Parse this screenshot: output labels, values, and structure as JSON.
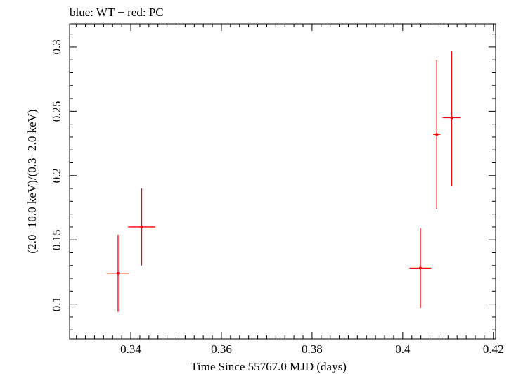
{
  "chart_data": {
    "type": "scatter",
    "title": "blue: WT − red: PC",
    "xlabel": "Time Since 55767.0 MJD (days)",
    "ylabel": "(2.0−10.0 keV)/(0.3−2.0 keV)",
    "xlim": [
      0.3265,
      0.4205
    ],
    "ylim": [
      0.073,
      0.318
    ],
    "x_ticks": [
      {
        "value": 0.34,
        "label": "0.34"
      },
      {
        "value": 0.36,
        "label": "0.36"
      },
      {
        "value": 0.38,
        "label": "0.38"
      },
      {
        "value": 0.4,
        "label": "0.4"
      },
      {
        "value": 0.42,
        "label": "0.42"
      }
    ],
    "y_ticks": [
      {
        "value": 0.1,
        "label": "0.1"
      },
      {
        "value": 0.15,
        "label": "0.15"
      },
      {
        "value": 0.2,
        "label": "0.2"
      },
      {
        "value": 0.25,
        "label": "0.25"
      },
      {
        "value": 0.3,
        "label": "0.3"
      }
    ],
    "grid": false,
    "series": [
      {
        "name": "PC",
        "color": "#ff0000",
        "points": [
          {
            "x": 0.3372,
            "y": 0.124,
            "xerr": 0.0025,
            "yerr_low": 0.03,
            "yerr_high": 0.03
          },
          {
            "x": 0.3424,
            "y": 0.16,
            "xerr": 0.003,
            "yerr_low": 0.03,
            "yerr_high": 0.03
          },
          {
            "x": 0.4039,
            "y": 0.128,
            "xerr": 0.0024,
            "yerr_low": 0.031,
            "yerr_high": 0.031
          },
          {
            "x": 0.4075,
            "y": 0.232,
            "xerr": 0.0008,
            "yerr_low": 0.058,
            "yerr_high": 0.058
          },
          {
            "x": 0.4108,
            "y": 0.245,
            "xerr": 0.002,
            "yerr_low": 0.053,
            "yerr_high": 0.052
          }
        ]
      }
    ]
  }
}
